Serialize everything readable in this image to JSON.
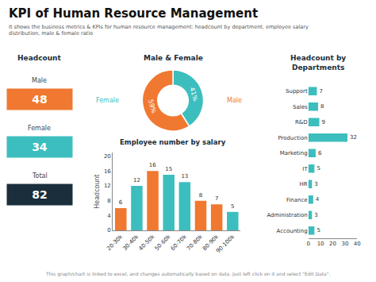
{
  "title": "KPI of Human Resource Management",
  "subtitle": "It shows the business metrics & KPIs for human resource management: headcount by department, employee salary\ndistribution, male & female ratio",
  "annotations": [
    "This graph/chart is linked to excel, and changes automatically based on data. Just left click on it and select \"Edit Data\"."
  ],
  "chart_data": [
    {
      "type": "kpi",
      "title": "Headcount",
      "categories": [
        "Male",
        "Female",
        "Total"
      ],
      "values": [
        48,
        34,
        82
      ],
      "colors": [
        "#f07830",
        "#3dbebe",
        "#1a2e3b"
      ]
    },
    {
      "type": "pie",
      "title": "Male & Female",
      "categories": [
        "Female",
        "Male"
      ],
      "values": [
        41,
        59
      ],
      "value_labels": [
        "41%",
        "59%"
      ],
      "colors": [
        "#3dbebe",
        "#f07830"
      ],
      "data_labels": true
    },
    {
      "type": "bar",
      "title": "Employee number by salary",
      "categories": [
        "20-30k",
        "30-40k",
        "40-50k",
        "50-60k",
        "60-70k",
        "70-80k",
        "80-90k",
        "90-100k"
      ],
      "values": [
        6,
        12,
        16,
        15,
        13,
        8,
        7,
        5
      ],
      "colors": [
        "#f07830",
        "#3dbebe",
        "#f07830",
        "#3dbebe",
        "#3dbebe",
        "#f07830",
        "#f07830",
        "#3dbebe"
      ],
      "ylabel": "Headcount",
      "ylim": [
        0,
        21
      ],
      "yticks": [
        0,
        4,
        8,
        12,
        16,
        20
      ],
      "grid": false,
      "data_labels": true
    },
    {
      "type": "bar",
      "orientation": "horizontal",
      "title": "Headcount by\nDepartments",
      "categories": [
        "Support",
        "Sales",
        "R&D",
        "Production",
        "Marketing",
        "IT",
        "HR",
        "Finance",
        "Administration",
        "Accounting"
      ],
      "values": [
        7,
        8,
        9,
        32,
        6,
        5,
        3,
        4,
        3,
        5
      ],
      "color": "#3dbebe",
      "xlim": [
        0,
        40
      ],
      "xticks": [
        0,
        10,
        20,
        30,
        40
      ],
      "grid": false,
      "data_labels": true
    }
  ]
}
